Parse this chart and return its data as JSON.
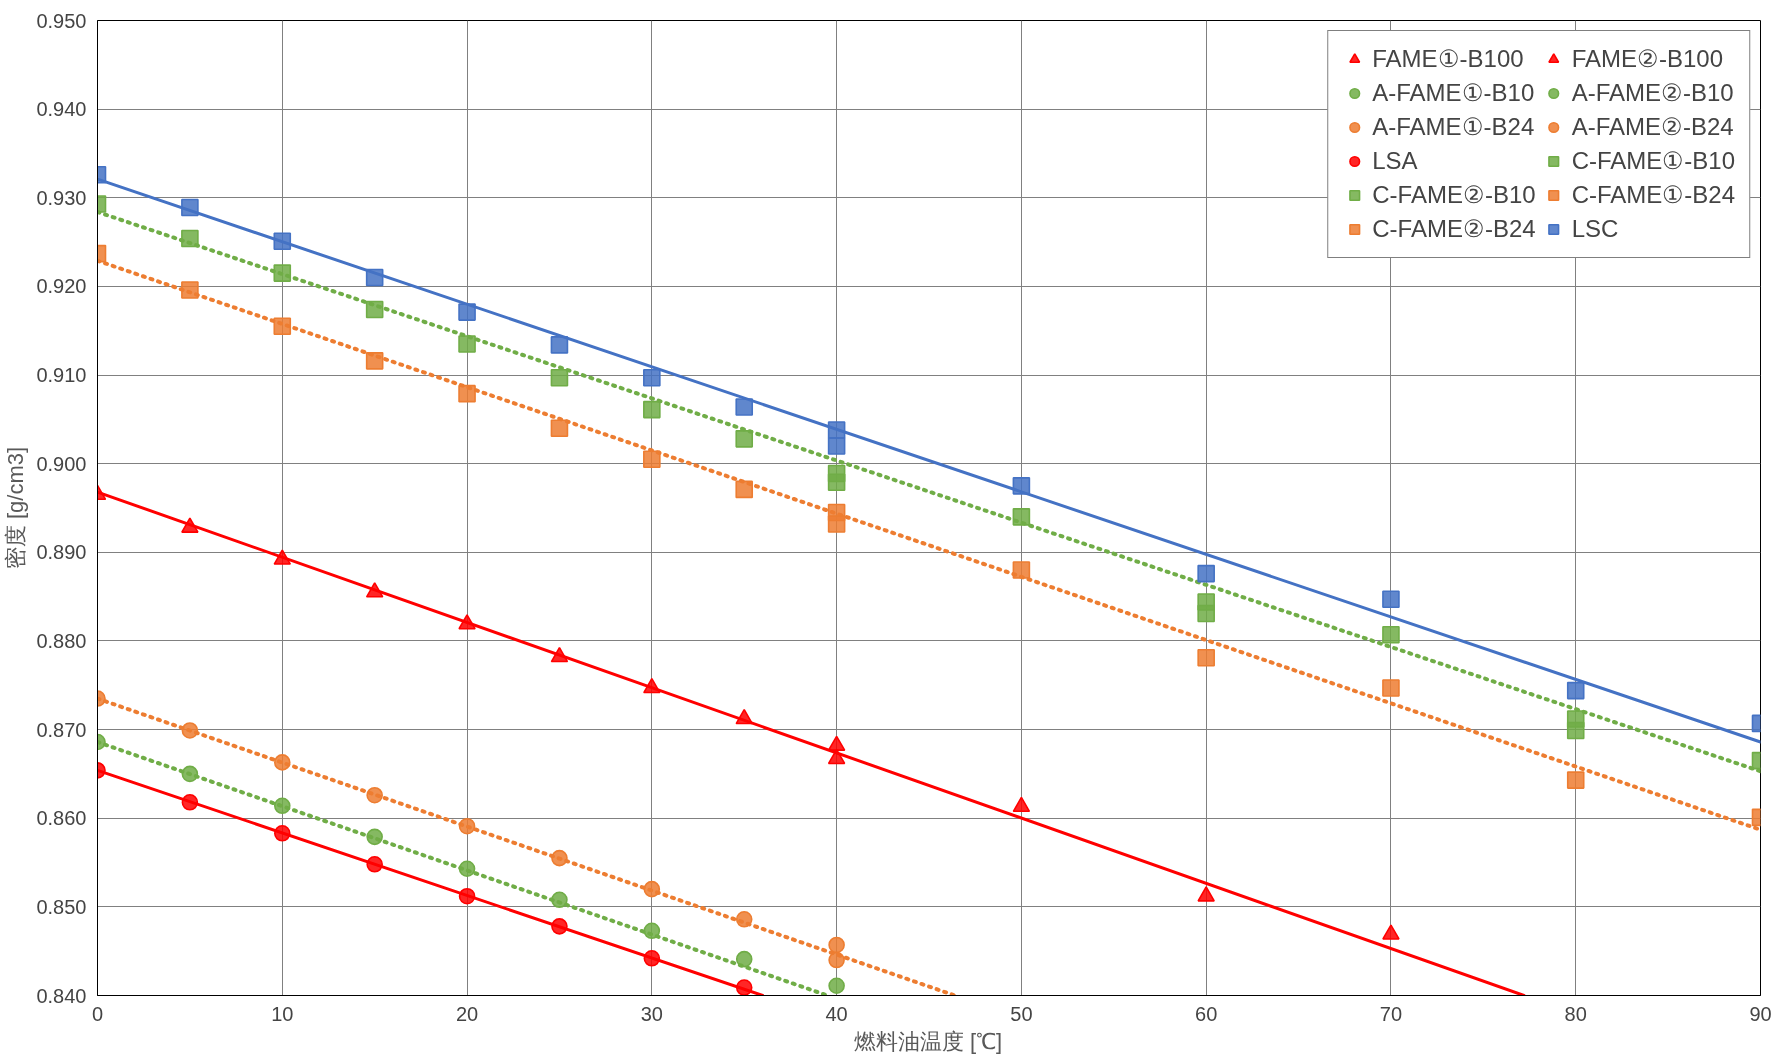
{
  "chart_data": {
    "type": "scatter",
    "xlabel": "燃料油温度 [℃]",
    "ylabel": "密度 [g/cm3]",
    "xlim": [
      0,
      90
    ],
    "ylim": [
      0.84,
      0.95
    ],
    "xticks": [
      0,
      10,
      20,
      30,
      40,
      50,
      60,
      70,
      80,
      90
    ],
    "yticks": [
      {
        "value": 0.84,
        "label": "0.840"
      },
      {
        "value": 0.85,
        "label": "0.850"
      },
      {
        "value": 0.86,
        "label": "0.860"
      },
      {
        "value": 0.87,
        "label": "0.870"
      },
      {
        "value": 0.88,
        "label": "0.880"
      },
      {
        "value": 0.89,
        "label": "0.890"
      },
      {
        "value": 0.9,
        "label": "0.900"
      },
      {
        "value": 0.91,
        "label": "0.910"
      },
      {
        "value": 0.92,
        "label": "0.920"
      },
      {
        "value": 0.93,
        "label": "0.930"
      },
      {
        "value": 0.94,
        "label": "0.940"
      },
      {
        "value": 0.95,
        "label": "0.950"
      }
    ],
    "grid": true,
    "legend": "top right",
    "series": [
      {
        "type": "line",
        "color": "#ff0000",
        "line_style": "solid",
        "x": [
          0,
          77.2
        ],
        "values": [
          0.8968,
          0.84
        ]
      },
      {
        "type": "line",
        "color": "#ff0000",
        "line_style": "solid",
        "x": [
          0,
          36.0
        ],
        "values": [
          0.8654,
          0.84
        ]
      },
      {
        "type": "line",
        "color": "#70ad47",
        "line_style": "dotted",
        "x": [
          0,
          39.5
        ],
        "values": [
          0.8686,
          0.84
        ]
      },
      {
        "type": "line",
        "color": "#ed7d31",
        "line_style": "dotted",
        "x": [
          0,
          46.4
        ],
        "values": [
          0.8735,
          0.84
        ]
      },
      {
        "type": "line",
        "color": "#70ad47",
        "line_style": "dotted",
        "x": [
          0,
          90
        ],
        "values": [
          0.9284,
          0.8653
        ]
      },
      {
        "type": "line",
        "color": "#ed7d31",
        "line_style": "dotted",
        "x": [
          0,
          90
        ],
        "values": [
          0.9229,
          0.8587
        ]
      },
      {
        "type": "line",
        "color": "#4472c4",
        "line_style": "solid",
        "x": [
          0,
          90
        ],
        "values": [
          0.9321,
          0.8686
        ]
      },
      {
        "name": "FAME①-B100",
        "color": "#ff0000",
        "marker": "triangle",
        "x": [
          40
        ],
        "values": [
          0.8682
        ]
      },
      {
        "name": "FAME②-B100",
        "color": "#ff0000",
        "marker": "triangle",
        "x": [
          0,
          5,
          10,
          15,
          20,
          25,
          30,
          35,
          40,
          50,
          60,
          70
        ],
        "values": [
          0.8965,
          0.8928,
          0.8892,
          0.8855,
          0.8819,
          0.8782,
          0.8747,
          0.8712,
          0.8667,
          0.8613,
          0.8512,
          0.8469
        ]
      },
      {
        "name": "A-FAME①-B10",
        "color": "#70ad47",
        "marker": "circle",
        "values": [
          null
        ]
      },
      {
        "name": "A-FAME②-B10",
        "color": "#70ad47",
        "marker": "circle",
        "x": [
          0,
          5,
          10,
          15,
          20,
          25,
          30,
          35,
          40
        ],
        "values": [
          0.8686,
          0.865,
          0.8614,
          0.8579,
          0.8543,
          0.8508,
          0.8473,
          0.8441,
          0.8411
        ]
      },
      {
        "name": "A-FAME①-B24",
        "color": "#ed7d31",
        "marker": "circle",
        "x": [
          40
        ],
        "values": [
          0.8457
        ]
      },
      {
        "name": "A-FAME②-B24",
        "color": "#ed7d31",
        "marker": "circle",
        "x": [
          0,
          5,
          10,
          15,
          20,
          25,
          30,
          35,
          40
        ],
        "values": [
          0.8735,
          0.8699,
          0.8663,
          0.8626,
          0.8591,
          0.8555,
          0.852,
          0.8486,
          0.844
        ]
      },
      {
        "name": "LSA",
        "color": "#ff0000",
        "marker": "circle",
        "x": [
          0,
          5,
          10,
          15,
          20,
          25,
          30,
          35
        ],
        "values": [
          0.8654,
          0.8618,
          0.8583,
          0.8548,
          0.8512,
          0.8478,
          0.8442,
          0.8409
        ]
      },
      {
        "name": "C-FAME①-B10",
        "color": "#70ad47",
        "marker": "square",
        "x": [
          40,
          60,
          80
        ],
        "values": [
          0.8989,
          0.8844,
          0.8712
        ]
      },
      {
        "name": "C-FAME②-B10",
        "color": "#70ad47",
        "marker": "square",
        "x": [
          0,
          5,
          10,
          15,
          20,
          25,
          30,
          35,
          40,
          50,
          60,
          70,
          80,
          90
        ],
        "values": [
          0.9293,
          0.9254,
          0.9215,
          0.9174,
          0.9135,
          0.9097,
          0.9061,
          0.9028,
          0.8979,
          0.894,
          0.8831,
          0.8807,
          0.8699,
          0.8665
        ]
      },
      {
        "name": "C-FAME①-B24",
        "color": "#ed7d31",
        "marker": "square",
        "x": [
          40
        ],
        "values": [
          0.8945
        ]
      },
      {
        "name": "C-FAME②-B24",
        "color": "#ed7d31",
        "marker": "square",
        "x": [
          0,
          5,
          10,
          15,
          20,
          25,
          30,
          35,
          40,
          50,
          60,
          70,
          80,
          90
        ],
        "values": [
          0.9237,
          0.9196,
          0.9155,
          0.9116,
          0.9079,
          0.904,
          0.9005,
          0.8971,
          0.8932,
          0.888,
          0.8781,
          0.8747,
          0.8643,
          0.8601
        ]
      },
      {
        "name": "LSC",
        "color": "#4472c4",
        "marker": "square",
        "x": [
          0,
          5,
          10,
          15,
          20,
          25,
          30,
          35,
          40,
          40,
          50,
          60,
          70,
          80,
          90
        ],
        "values": [
          0.9326,
          0.9289,
          0.9251,
          0.921,
          0.9171,
          0.9134,
          0.9097,
          0.9064,
          0.9038,
          0.902,
          0.8975,
          0.8876,
          0.8847,
          0.8744,
          0.8707
        ]
      }
    ]
  }
}
